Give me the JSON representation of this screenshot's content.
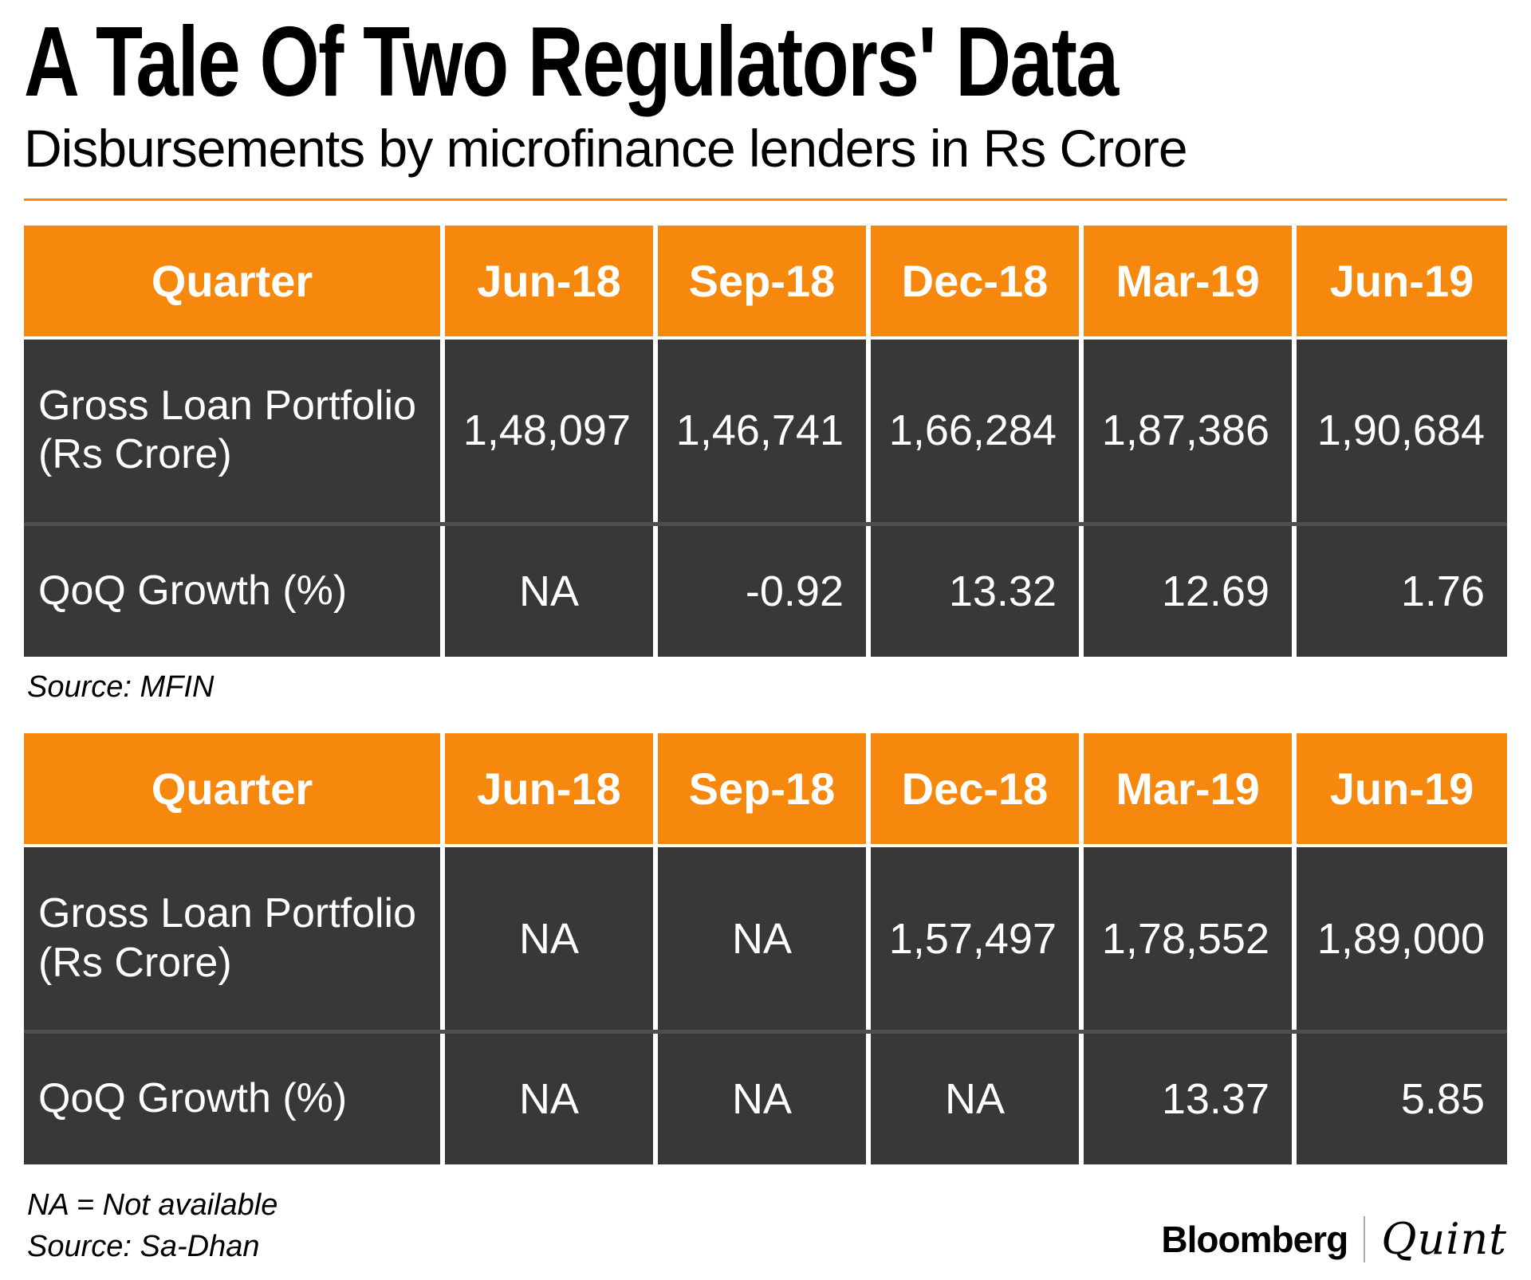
{
  "header": {
    "title": "A Tale Of Two Regulators' Data",
    "subtitle": "Disbursements by microfinance lenders in Rs Crore"
  },
  "colors": {
    "accent_orange": "#F6890D",
    "cell_dark": "#383838",
    "row_divider": "#4E4E4E",
    "text_white": "#FFFFFF",
    "logo_divider": "#ADADAD"
  },
  "tables": [
    {
      "source_label": "Source: MFIN",
      "columns": [
        "Quarter",
        "Jun-18",
        "Sep-18",
        "Dec-18",
        "Mar-19",
        "Jun-19"
      ],
      "rows": [
        {
          "label": "Gross Loan Portfolio (Rs Crore)",
          "values": [
            "1,48,097",
            "1,46,741",
            "1,66,284",
            "1,87,386",
            "1,90,684"
          ]
        },
        {
          "label": "QoQ Growth (%)",
          "values": [
            "NA",
            "-0.92",
            "13.32",
            "12.69",
            "1.76"
          ]
        }
      ]
    },
    {
      "source_label": "Source: Sa-Dhan",
      "columns": [
        "Quarter",
        "Jun-18",
        "Sep-18",
        "Dec-18",
        "Mar-19",
        "Jun-19"
      ],
      "rows": [
        {
          "label": "Gross Loan Portfolio (Rs Crore)",
          "values": [
            "NA",
            "NA",
            "1,57,497",
            "1,78,552",
            "1,89,000"
          ]
        },
        {
          "label": "QoQ Growth (%)",
          "values": [
            "NA",
            "NA",
            "NA",
            "13.37",
            "5.85"
          ]
        }
      ]
    }
  ],
  "footer": {
    "na_note": "NA = Not available",
    "brand": {
      "bloomberg": "Bloomberg",
      "quint": "Quint"
    }
  },
  "chart_data": [
    {
      "type": "table",
      "title": "Disbursements by microfinance lenders in Rs Crore (MFIN data)",
      "source": "MFIN",
      "categories": [
        "Jun-18",
        "Sep-18",
        "Dec-18",
        "Mar-19",
        "Jun-19"
      ],
      "series": [
        {
          "name": "Gross Loan Portfolio (Rs Crore)",
          "values": [
            148097,
            146741,
            166284,
            187386,
            190684
          ]
        },
        {
          "name": "QoQ Growth (%)",
          "values": [
            null,
            -0.92,
            13.32,
            12.69,
            1.76
          ]
        }
      ]
    },
    {
      "type": "table",
      "title": "Disbursements by microfinance lenders in Rs Crore (Sa-Dhan data)",
      "source": "Sa-Dhan",
      "categories": [
        "Jun-18",
        "Sep-18",
        "Dec-18",
        "Mar-19",
        "Jun-19"
      ],
      "series": [
        {
          "name": "Gross Loan Portfolio (Rs Crore)",
          "values": [
            null,
            null,
            157497,
            178552,
            189000
          ]
        },
        {
          "name": "QoQ Growth (%)",
          "values": [
            null,
            null,
            null,
            13.37,
            5.85
          ]
        }
      ]
    }
  ]
}
